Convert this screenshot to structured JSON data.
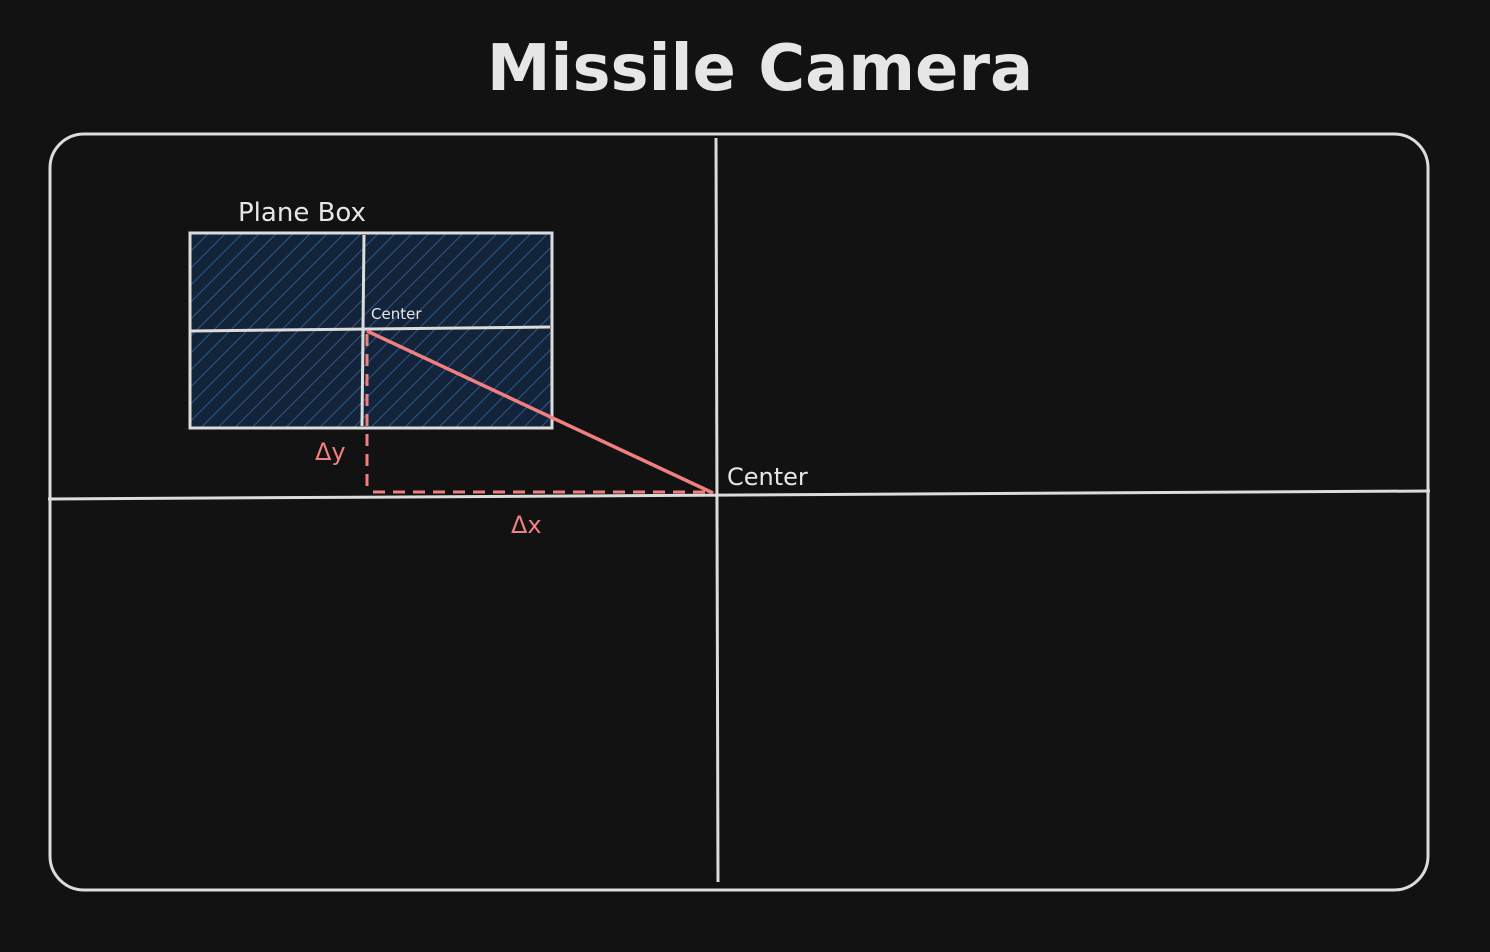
{
  "title": "Missile Camera",
  "plane_box": {
    "label": "Plane Box",
    "center_label": "Center"
  },
  "camera": {
    "center_label": "Center"
  },
  "offsets": {
    "dx_label": "Δx",
    "dy_label": "Δy"
  },
  "colors": {
    "background": "#121212",
    "stroke": "#dcdcdc",
    "text": "#e6e6e6",
    "hatch": "#2f5a8a",
    "hatch_fill": "#13233a",
    "offset": "#f08080"
  }
}
